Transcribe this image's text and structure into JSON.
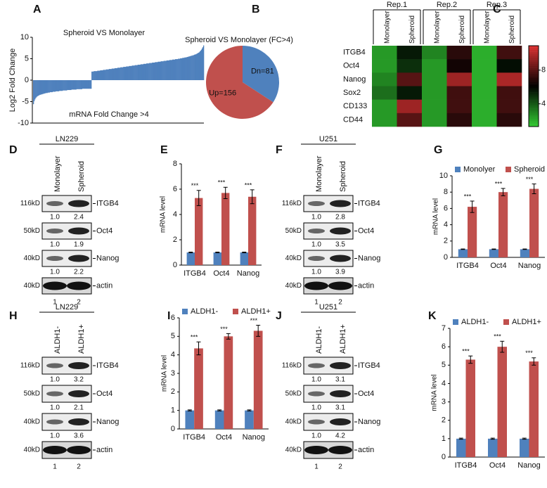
{
  "chart_data": [
    {
      "type": "bar",
      "panel": "A",
      "title": "Spheroid VS Monolayer",
      "annotation": "mRNA  Fold Change >4",
      "ylabel": "Log2 Fold Change",
      "color": "#4f81bd",
      "ylim": [
        -10,
        10
      ],
      "yticks": [
        10,
        5,
        0,
        -5,
        -10
      ],
      "values": [
        -5.6,
        -4.9,
        -4.5,
        -4.2,
        -4.0,
        -3.8,
        -3.7,
        -3.6,
        -3.5,
        -3.4,
        -3.4,
        -3.3,
        -3.3,
        -3.2,
        -3.2,
        -3.1,
        -3.1,
        -3.0,
        -3.0,
        -3.0,
        -2.9,
        -2.9,
        -2.9,
        -2.8,
        -2.8,
        -2.8,
        -2.8,
        -2.7,
        -2.7,
        -2.7,
        -2.7,
        -2.6,
        -2.6,
        -2.6,
        -2.6,
        -2.6,
        -2.5,
        -2.5,
        -2.5,
        -2.5,
        -2.5,
        -2.4,
        -2.4,
        -2.4,
        -2.4,
        -2.4,
        -2.4,
        -2.3,
        -2.3,
        -2.3,
        -2.3,
        -2.3,
        -2.3,
        -2.2,
        -2.2,
        -2.2,
        -2.2,
        -2.2,
        -2.2,
        -2.2,
        -2.1,
        -2.1,
        -2.1,
        -2.1,
        -2.1,
        -2.1,
        -2.1,
        -2.1,
        -2.0,
        -2.0,
        -2.0,
        -2.0,
        -2.0,
        -2.0,
        -2.0,
        -2.0,
        -2.0,
        -2.0,
        -2.0,
        -2.0,
        -2.0,
        2.0,
        2.0,
        2.0,
        2.1,
        2.1,
        2.1,
        2.1,
        2.1,
        2.2,
        2.2,
        2.2,
        2.2,
        2.3,
        2.3,
        2.3,
        2.3,
        2.4,
        2.4,
        2.4,
        2.4,
        2.5,
        2.5,
        2.5,
        2.5,
        2.6,
        2.6,
        2.6,
        2.6,
        2.7,
        2.7,
        2.7,
        2.7,
        2.8,
        2.8,
        2.8,
        2.8,
        2.9,
        2.9,
        2.9,
        2.9,
        3.0,
        3.0,
        3.0,
        3.0,
        3.1,
        3.1,
        3.1,
        3.1,
        3.2,
        3.2,
        3.2,
        3.2,
        3.3,
        3.3,
        3.3,
        3.3,
        3.4,
        3.4,
        3.4,
        3.4,
        3.5,
        3.5,
        3.5,
        3.5,
        3.6,
        3.6,
        3.6,
        3.6,
        3.7,
        3.7,
        3.7,
        3.7,
        3.8,
        3.8,
        3.8,
        3.8,
        3.9,
        3.9,
        3.9,
        3.9,
        4.0,
        4.0,
        4.0,
        4.0,
        4.1,
        4.1,
        4.1,
        4.1,
        4.2,
        4.2,
        4.2,
        4.2,
        4.3,
        4.3,
        4.3,
        4.3,
        4.4,
        4.4,
        4.4,
        4.4,
        4.5,
        4.5,
        4.5,
        4.5,
        4.6,
        4.6,
        4.6,
        4.6,
        4.7,
        4.7,
        4.7,
        4.7,
        4.8,
        4.8,
        4.8,
        4.8,
        4.9,
        4.9,
        4.9,
        4.9,
        5.0,
        5.0,
        5.0,
        5.1,
        5.1,
        5.1,
        5.2,
        5.2,
        5.2,
        5.3,
        5.3,
        5.3,
        5.4,
        5.4,
        5.5,
        5.5,
        5.6,
        5.6,
        5.7,
        5.7,
        5.8,
        5.8,
        5.9,
        6.0,
        6.0,
        6.1,
        6.2,
        6.3,
        6.4,
        6.5,
        6.7,
        6.9,
        7.1,
        7.4,
        7.7,
        8.1
      ]
    },
    {
      "type": "pie",
      "panel": "B",
      "title": "Spheroid VS Monolayer (FC>4)",
      "values": [
        81,
        156
      ],
      "value_labels": [
        "Dn=81",
        "Up=156"
      ],
      "colors": [
        "#4f81bd",
        "#c0504d"
      ]
    },
    {
      "type": "heatmap",
      "panel": "C",
      "groups": [
        "Rep.1",
        "Rep.2",
        "Rep.3"
      ],
      "columns": [
        "Monolayer",
        "Spheroid",
        "Monolayer",
        "Spheroid",
        "Monolayer",
        "Spheroid"
      ],
      "rows": [
        "ITGB4",
        "Oct4",
        "Nanog",
        "Sox2",
        "CD133",
        "CD44"
      ],
      "values": [
        [
          2.5,
          5.5,
          3.0,
          7.0,
          2.0,
          7.5
        ],
        [
          2.5,
          5.0,
          2.5,
          6.5,
          2.0,
          5.8
        ],
        [
          3.0,
          8.0,
          2.5,
          9.5,
          2.0,
          9.8
        ],
        [
          3.5,
          5.5,
          2.5,
          7.5,
          2.0,
          7.5
        ],
        [
          2.5,
          9.5,
          2.5,
          7.5,
          2.0,
          7.5
        ],
        [
          2.5,
          8.0,
          2.5,
          7.0,
          2.0,
          7.0
        ]
      ],
      "zlim": [
        1.3,
        10.9
      ],
      "zticks": [
        8,
        4
      ],
      "colors": [
        "#33cc33",
        "#000000",
        "#dd3333"
      ]
    },
    {
      "type": "grouped_bar",
      "panel": "E",
      "ylabel": "mRNA level",
      "ylim": [
        0,
        8
      ],
      "yticks": [
        0,
        2,
        4,
        6,
        8
      ],
      "categories": [
        "ITGB4",
        "Oct4",
        "Nanog"
      ],
      "series": [
        {
          "color": "#4f81bd",
          "values": [
            1,
            1,
            1
          ],
          "errors": [
            0.03,
            0.03,
            0.03
          ]
        },
        {
          "color": "#c0504d",
          "values": [
            5.3,
            5.7,
            5.4
          ],
          "errors": [
            0.6,
            0.45,
            0.55
          ]
        }
      ],
      "annotations": [
        "***",
        "***",
        "***"
      ]
    },
    {
      "type": "grouped_bar",
      "panel": "G",
      "ylabel": "mRNA level",
      "ylim": [
        0,
        10
      ],
      "yticks": [
        0,
        2,
        4,
        6,
        8,
        10
      ],
      "categories": [
        "ITGB4",
        "Oct4",
        "Nanog"
      ],
      "series": [
        {
          "name": "Monolyer",
          "color": "#4f81bd",
          "values": [
            1,
            1,
            1
          ],
          "errors": [
            0.03,
            0.03,
            0.03
          ]
        },
        {
          "name": "Spheroid",
          "color": "#c0504d",
          "values": [
            6.2,
            8.0,
            8.4
          ],
          "errors": [
            0.7,
            0.45,
            0.6
          ]
        }
      ],
      "annotations": [
        "***",
        "***",
        "***"
      ]
    },
    {
      "type": "grouped_bar",
      "panel": "I",
      "ylabel": "mRNA level",
      "ylim": [
        0,
        6
      ],
      "yticks": [
        0,
        1,
        2,
        3,
        4,
        5,
        6
      ],
      "categories": [
        "ITGB4",
        "Oct4",
        "Nanog"
      ],
      "series": [
        {
          "name": "ALDH1-",
          "color": "#4f81bd",
          "values": [
            1,
            1,
            1
          ],
          "errors": [
            0.03,
            0.03,
            0.03
          ]
        },
        {
          "name": "ALDH1+",
          "color": "#c0504d",
          "values": [
            4.35,
            5.0,
            5.3
          ],
          "errors": [
            0.35,
            0.15,
            0.3
          ]
        }
      ],
      "annotations": [
        "***",
        "***",
        "***"
      ]
    },
    {
      "type": "grouped_bar",
      "panel": "K",
      "ylabel": "mRNA level",
      "ylim": [
        0,
        7
      ],
      "yticks": [
        0,
        1,
        2,
        3,
        4,
        5,
        6,
        7
      ],
      "categories": [
        "ITGB4",
        "Oct4",
        "Nanog"
      ],
      "series": [
        {
          "name": "ALDH1-",
          "color": "#4f81bd",
          "values": [
            1,
            1,
            1
          ],
          "errors": [
            0.03,
            0.03,
            0.03
          ]
        },
        {
          "name": "ALDH1+",
          "color": "#c0504d",
          "values": [
            5.3,
            6.0,
            5.2
          ],
          "errors": [
            0.2,
            0.3,
            0.2
          ]
        }
      ],
      "annotations": [
        "***",
        "***",
        "***"
      ]
    }
  ],
  "blots": [
    {
      "panel": "D",
      "cell_line": "LN229",
      "lanes": [
        "Monolayer",
        "Spheroid"
      ],
      "lane_numbers": [
        "1",
        "2"
      ],
      "rows": [
        {
          "marker": "116kD",
          "protein": "ITGB4",
          "quant": [
            "1.0",
            "2.4"
          ]
        },
        {
          "marker": "50kD",
          "protein": "Oct4",
          "quant": [
            "1.0",
            "1.9"
          ]
        },
        {
          "marker": "40kD",
          "protein": "Nanog",
          "quant": [
            "1.0",
            "2.2"
          ]
        },
        {
          "marker": "40kD",
          "protein": "actin"
        }
      ]
    },
    {
      "panel": "F",
      "cell_line": "U251",
      "lanes": [
        "Monolayer",
        "Spheroid"
      ],
      "lane_numbers": [
        "1",
        "2"
      ],
      "rows": [
        {
          "marker": "116kD",
          "protein": "ITGB4",
          "quant": [
            "1.0",
            "2.8"
          ]
        },
        {
          "marker": "50kD",
          "protein": "Oct4",
          "quant": [
            "1.0",
            "3.5"
          ]
        },
        {
          "marker": "40kD",
          "protein": "Nanog",
          "quant": [
            "1.0",
            "3.9"
          ]
        },
        {
          "marker": "40kD",
          "protein": "actin"
        }
      ]
    },
    {
      "panel": "H",
      "cell_line": "LN229",
      "lanes": [
        "ALDH1-",
        "ALDH1+"
      ],
      "lane_numbers": [
        "1",
        "2"
      ],
      "rows": [
        {
          "marker": "116kD",
          "protein": "ITGB4",
          "quant": [
            "1.0",
            "3.2"
          ]
        },
        {
          "marker": "50kD",
          "protein": "Oct4",
          "quant": [
            "1.0",
            "2.1"
          ]
        },
        {
          "marker": "40kD",
          "protein": "Nanog",
          "quant": [
            "1.0",
            "3.6"
          ]
        },
        {
          "marker": "40kD",
          "protein": "actin"
        }
      ]
    },
    {
      "panel": "J",
      "cell_line": "U251",
      "lanes": [
        "ALDH1-",
        "ALDH1+"
      ],
      "lane_numbers": [
        "1",
        "2"
      ],
      "rows": [
        {
          "marker": "116kD",
          "protein": "ITGB4",
          "quant": [
            "1.0",
            "3.1"
          ]
        },
        {
          "marker": "50kD",
          "protein": "Oct4",
          "quant": [
            "1.0",
            "3.1"
          ]
        },
        {
          "marker": "40kD",
          "protein": "Nanog",
          "quant": [
            "1.0",
            "4.2"
          ]
        },
        {
          "marker": "40kD",
          "protein": "actin"
        }
      ]
    }
  ]
}
